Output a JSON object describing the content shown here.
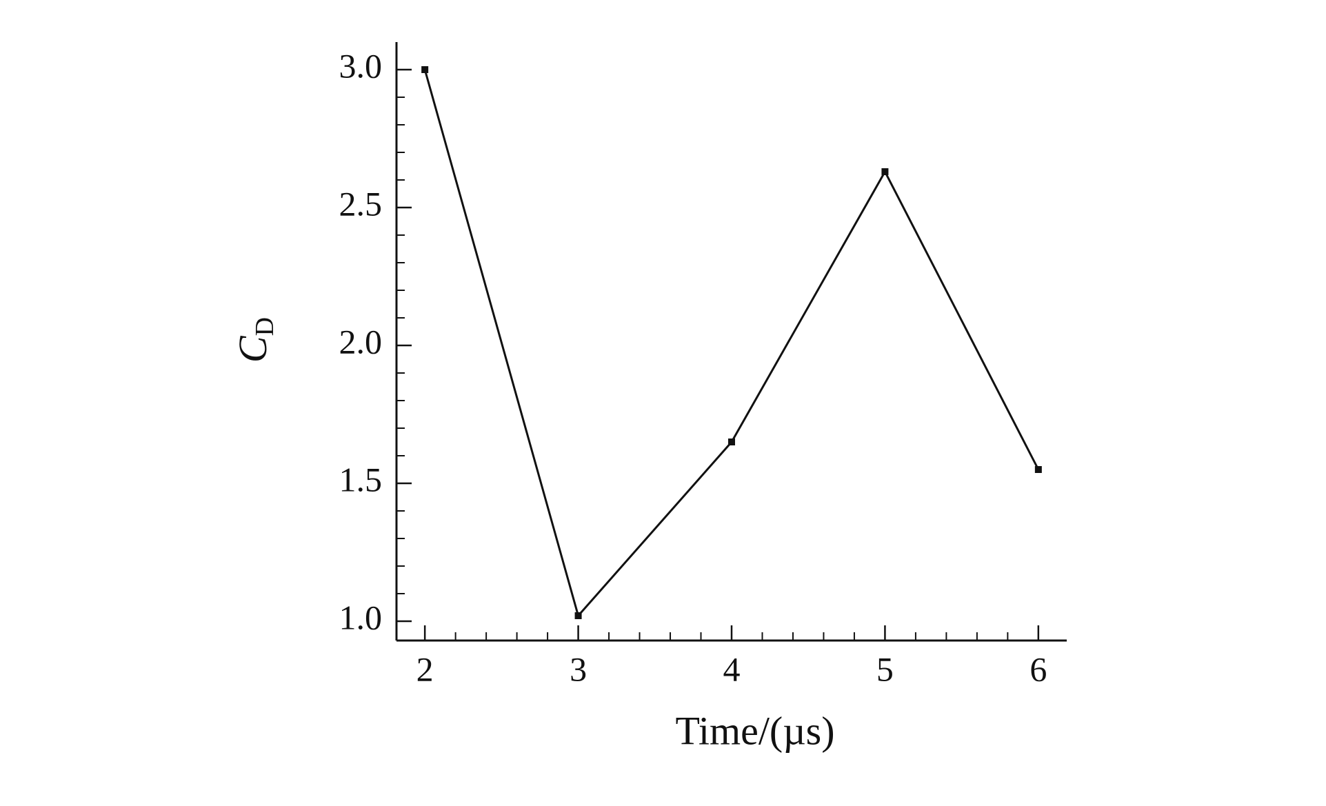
{
  "chart_data": {
    "type": "line",
    "xlabel": "Time/(µs)",
    "ylabel": {
      "symbol": "C",
      "subscript": "D"
    },
    "x": [
      2,
      3,
      4,
      5,
      6
    ],
    "series": [
      {
        "color": "#111111",
        "values": [
          3.0,
          1.02,
          1.65,
          2.63,
          1.55
        ]
      }
    ],
    "xlim": [
      1.815,
      6.185
    ],
    "ylim": [
      0.93,
      3.1
    ],
    "xticks": [
      2,
      3,
      4,
      5,
      6
    ],
    "yticks": [
      {
        "value": 1,
        "label": "1.0"
      },
      1.5,
      {
        "value": 2,
        "label": "2.0"
      },
      2.5,
      {
        "value": 3,
        "label": "3.0"
      }
    ],
    "xminorticks": [
      2.2,
      2.4,
      2.6,
      2.8,
      3.2,
      3.4,
      3.6,
      3.8,
      4.2,
      4.4,
      4.6,
      4.8,
      5.2,
      5.4,
      5.6,
      5.8
    ],
    "yminorticks": [
      1.1,
      1.2,
      1.3,
      1.4,
      1.6,
      1.7,
      1.8,
      1.9,
      2.1,
      2.2,
      2.3,
      2.4,
      2.6,
      2.7,
      2.8,
      2.9
    ],
    "grid": false,
    "markers": "square"
  }
}
